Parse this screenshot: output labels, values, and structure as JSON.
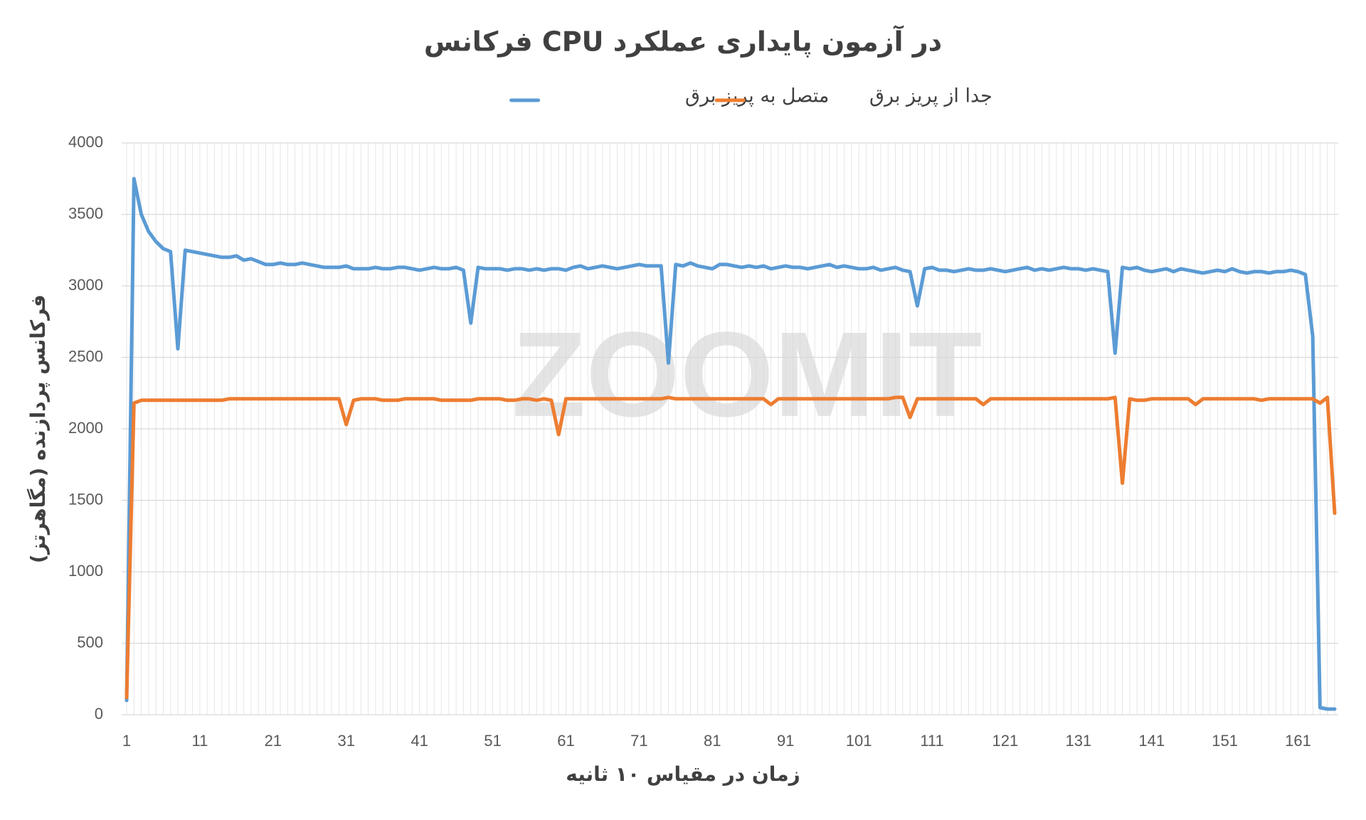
{
  "chart_data": {
    "type": "line",
    "title": "فرکانس CPU در آزمون پایداری عملکرد",
    "x_label": "زمان در مقیاس ۱۰ ثانیه",
    "y_label": "فرکانس پردازنده (مگاهرتز)",
    "watermark": "ZOOMIT",
    "categories": [
      1,
      null,
      null,
      null,
      null,
      null,
      null,
      null,
      null,
      null,
      11,
      null,
      null,
      null,
      null,
      null,
      null,
      null,
      null,
      null,
      21,
      null,
      null,
      null,
      null,
      null,
      null,
      null,
      null,
      null,
      31,
      null,
      null,
      null,
      null,
      null,
      null,
      null,
      null,
      null,
      41,
      null,
      null,
      null,
      null,
      null,
      null,
      null,
      null,
      null,
      51,
      null,
      null,
      null,
      null,
      null,
      null,
      null,
      null,
      null,
      61,
      null,
      null,
      null,
      null,
      null,
      null,
      null,
      null,
      null,
      71,
      null,
      null,
      null,
      null,
      null,
      null,
      null,
      null,
      null,
      81,
      null,
      null,
      null,
      null,
      null,
      null,
      null,
      null,
      null,
      91,
      null,
      null,
      null,
      null,
      null,
      null,
      null,
      null,
      null,
      101,
      null,
      null,
      null,
      null,
      null,
      null,
      null,
      null,
      null,
      111,
      null,
      null,
      null,
      null,
      null,
      null,
      null,
      null,
      null,
      121,
      null,
      null,
      null,
      null,
      null,
      null,
      null,
      null,
      null,
      131,
      null,
      null,
      null,
      null,
      null,
      null,
      null,
      null,
      null,
      141,
      null,
      null,
      null,
      null,
      null,
      null,
      null,
      null,
      null,
      151,
      null,
      null,
      null,
      null,
      null,
      null,
      null,
      null,
      null,
      161,
      null,
      null,
      null,
      null,
      null
    ],
    "series": [
      {
        "name": "متصل به پریز برق",
        "color": "#5b9bd5",
        "values": [
          100,
          3750,
          3500,
          3380,
          3310,
          3260,
          3240,
          2560,
          3250,
          3240,
          3230,
          3220,
          3210,
          3200,
          3200,
          3210,
          3180,
          3190,
          3170,
          3150,
          3150,
          3160,
          3150,
          3150,
          3160,
          3150,
          3140,
          3130,
          3130,
          3130,
          3140,
          3120,
          3120,
          3120,
          3130,
          3120,
          3120,
          3130,
          3130,
          3120,
          3110,
          3120,
          3130,
          3120,
          3120,
          3130,
          3110,
          2740,
          3130,
          3120,
          3120,
          3120,
          3110,
          3120,
          3120,
          3110,
          3120,
          3110,
          3120,
          3120,
          3110,
          3130,
          3140,
          3120,
          3130,
          3140,
          3130,
          3120,
          3130,
          3140,
          3150,
          3140,
          3140,
          3140,
          2460,
          3150,
          3140,
          3160,
          3140,
          3130,
          3120,
          3150,
          3150,
          3140,
          3130,
          3140,
          3130,
          3140,
          3120,
          3130,
          3140,
          3130,
          3130,
          3120,
          3130,
          3140,
          3150,
          3130,
          3140,
          3130,
          3120,
          3120,
          3130,
          3110,
          3120,
          3130,
          3110,
          3100,
          2860,
          3120,
          3130,
          3110,
          3110,
          3100,
          3110,
          3120,
          3110,
          3110,
          3120,
          3110,
          3100,
          3110,
          3120,
          3130,
          3110,
          3120,
          3110,
          3120,
          3130,
          3120,
          3120,
          3110,
          3120,
          3110,
          3100,
          2530,
          3130,
          3120,
          3130,
          3110,
          3100,
          3110,
          3120,
          3100,
          3120,
          3110,
          3100,
          3090,
          3100,
          3110,
          3100,
          3120,
          3100,
          3090,
          3100,
          3100,
          3090,
          3100,
          3100,
          3110,
          3100,
          3080,
          2650,
          50,
          40,
          40
        ]
      },
      {
        "name": "جدا از پریز برق",
        "color": "#ed7d31",
        "values": [
          120,
          2180,
          2200,
          2200,
          2200,
          2200,
          2200,
          2200,
          2200,
          2200,
          2200,
          2200,
          2200,
          2200,
          2210,
          2210,
          2210,
          2210,
          2210,
          2210,
          2210,
          2210,
          2210,
          2210,
          2210,
          2210,
          2210,
          2210,
          2210,
          2210,
          2030,
          2200,
          2210,
          2210,
          2210,
          2200,
          2200,
          2200,
          2210,
          2210,
          2210,
          2210,
          2210,
          2200,
          2200,
          2200,
          2200,
          2200,
          2210,
          2210,
          2210,
          2210,
          2200,
          2200,
          2210,
          2210,
          2200,
          2210,
          2200,
          1960,
          2210,
          2210,
          2210,
          2210,
          2210,
          2210,
          2210,
          2210,
          2210,
          2210,
          2210,
          2210,
          2210,
          2210,
          2220,
          2210,
          2210,
          2210,
          2210,
          2210,
          2210,
          2210,
          2210,
          2210,
          2210,
          2210,
          2210,
          2210,
          2170,
          2210,
          2210,
          2210,
          2210,
          2210,
          2210,
          2210,
          2210,
          2210,
          2210,
          2210,
          2210,
          2210,
          2210,
          2210,
          2210,
          2220,
          2220,
          2080,
          2210,
          2210,
          2210,
          2210,
          2210,
          2210,
          2210,
          2210,
          2210,
          2170,
          2210,
          2210,
          2210,
          2210,
          2210,
          2210,
          2210,
          2210,
          2210,
          2210,
          2210,
          2210,
          2210,
          2210,
          2210,
          2210,
          2210,
          2220,
          1620,
          2210,
          2200,
          2200,
          2210,
          2210,
          2210,
          2210,
          2210,
          2210,
          2170,
          2210,
          2210,
          2210,
          2210,
          2210,
          2210,
          2210,
          2210,
          2200,
          2210,
          2210,
          2210,
          2210,
          2210,
          2210,
          2210,
          2180,
          2220,
          1410
        ]
      }
    ],
    "ylim": [
      0,
      4000
    ],
    "yticks": [
      0,
      500,
      1000,
      1500,
      2000,
      2500,
      3000,
      3500,
      4000
    ],
    "grid": true,
    "legend": "top"
  }
}
